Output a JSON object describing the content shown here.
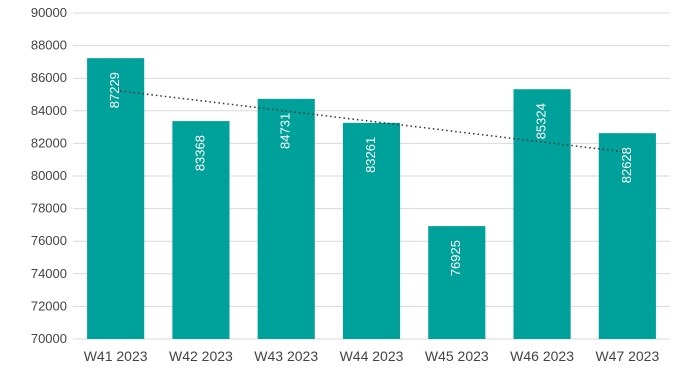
{
  "chart_data": {
    "type": "bar",
    "title": "",
    "xlabel": "",
    "ylabel": "",
    "categories": [
      "W41 2023",
      "W42 2023",
      "W43 2023",
      "W44 2023",
      "W45 2023",
      "W46 2023",
      "W47 2023"
    ],
    "values": [
      87229,
      83368,
      84731,
      83261,
      76925,
      85324,
      82628
    ],
    "ylim": [
      70000,
      90000
    ],
    "yticks": [
      "70000",
      "72000",
      "74000",
      "76000",
      "78000",
      "80000",
      "82000",
      "84000",
      "86000",
      "88000",
      "90000"
    ],
    "bar_color": "#00a19a",
    "data_labels": true,
    "data_label_orientation": "rotated",
    "trendline": "linear dotted",
    "grid": true,
    "legend": "none"
  }
}
